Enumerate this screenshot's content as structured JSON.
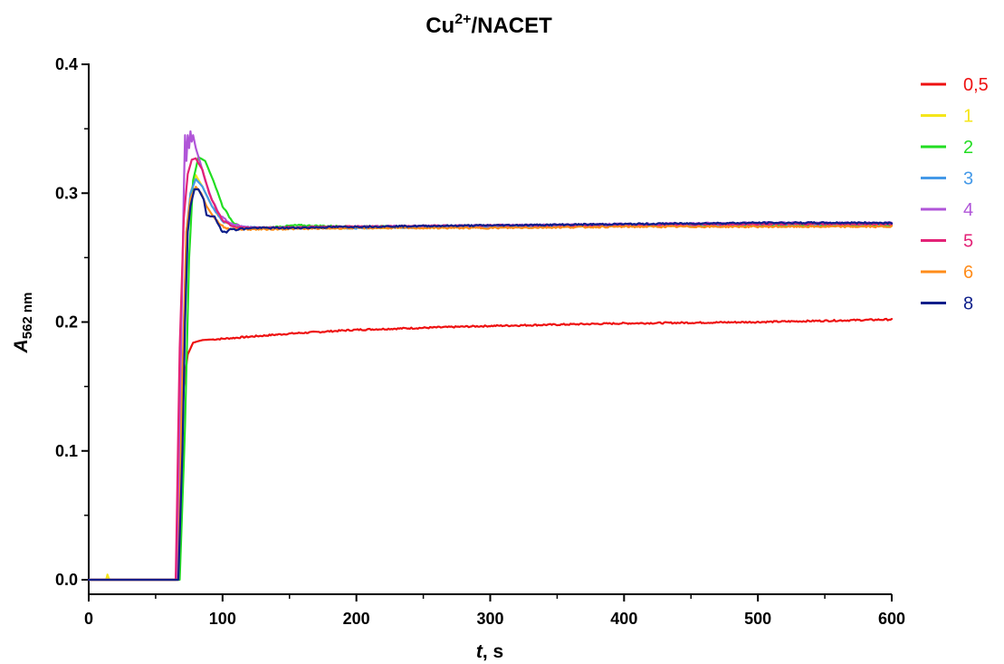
{
  "chart_data": {
    "type": "line",
    "title_main": "Cu",
    "title_sup": "2+",
    "title_rest": "/NACET",
    "xlabel_italic": "t",
    "xlabel_rest": ", s",
    "ylabel_italic": "A",
    "ylabel_sub": "562 nm",
    "xlim": [
      0,
      600
    ],
    "ylim": [
      0,
      0.4
    ],
    "xticks": [
      "0",
      "100",
      "200",
      "300",
      "400",
      "500",
      "600"
    ],
    "yticks": [
      "0.0",
      "0.1",
      "0.2",
      "0.3",
      "0.4"
    ],
    "grid": false,
    "legend_position": "right",
    "series": [
      {
        "name": "0,5",
        "color": "#ee1111",
        "onset": 66,
        "x": [
          0,
          65,
          68,
          71,
          74,
          78,
          85,
          100,
          150,
          200,
          300,
          400,
          500,
          600
        ],
        "y": [
          0,
          0,
          0.06,
          0.15,
          0.175,
          0.184,
          0.186,
          0.187,
          0.191,
          0.194,
          0.197,
          0.199,
          0.2,
          0.202
        ]
      },
      {
        "name": "1",
        "color": "#f5e61a",
        "onset": 68,
        "x": [
          0,
          13,
          14,
          15,
          16,
          66,
          70,
          73,
          76,
          80,
          85,
          92,
          100,
          110,
          130,
          200,
          300,
          400,
          500,
          600
        ],
        "y": [
          0,
          0,
          0.004,
          0.001,
          0,
          0,
          0.12,
          0.26,
          0.3,
          0.314,
          0.305,
          0.29,
          0.278,
          0.274,
          0.273,
          0.273,
          0.274,
          0.275,
          0.275,
          0.275
        ]
      },
      {
        "name": "2",
        "color": "#22dd22",
        "onset": 70,
        "x": [
          0,
          68,
          72,
          75,
          78,
          82,
          87,
          93,
          100,
          108,
          115,
          130,
          155,
          200,
          300,
          400,
          500,
          600
        ],
        "y": [
          0,
          0,
          0.12,
          0.25,
          0.31,
          0.328,
          0.325,
          0.31,
          0.29,
          0.277,
          0.273,
          0.273,
          0.275,
          0.274,
          0.274,
          0.275,
          0.275,
          0.275
        ]
      },
      {
        "name": "3",
        "color": "#4499e8",
        "onset": 68,
        "x": [
          0,
          67,
          70,
          73,
          76,
          80,
          85,
          92,
          100,
          110,
          130,
          200,
          300,
          400,
          500,
          600
        ],
        "y": [
          0,
          0,
          0.15,
          0.27,
          0.3,
          0.311,
          0.305,
          0.29,
          0.278,
          0.274,
          0.273,
          0.273,
          0.274,
          0.275,
          0.276,
          0.276
        ]
      },
      {
        "name": "4",
        "color": "#b055d8",
        "onset": 67,
        "x": [
          0,
          66,
          69,
          71,
          72,
          73,
          74,
          75,
          76,
          77,
          78,
          80,
          83,
          87,
          92,
          98,
          105,
          115,
          130,
          200,
          300,
          400,
          500,
          600
        ],
        "y": [
          0,
          0,
          0.18,
          0.3,
          0.345,
          0.325,
          0.345,
          0.335,
          0.348,
          0.34,
          0.345,
          0.335,
          0.325,
          0.31,
          0.295,
          0.283,
          0.277,
          0.274,
          0.273,
          0.274,
          0.275,
          0.276,
          0.277,
          0.277
        ]
      },
      {
        "name": "5",
        "color": "#e32277",
        "onset": 66,
        "x": [
          0,
          65,
          68,
          71,
          74,
          77,
          80,
          85,
          90,
          95,
          100,
          108,
          120,
          200,
          300,
          400,
          500,
          600
        ],
        "y": [
          0,
          0,
          0.18,
          0.28,
          0.315,
          0.326,
          0.327,
          0.318,
          0.3,
          0.288,
          0.279,
          0.274,
          0.273,
          0.274,
          0.275,
          0.275,
          0.276,
          0.276
        ]
      },
      {
        "name": "6",
        "color": "#ff8c1a",
        "onset": 68,
        "x": [
          0,
          67,
          70,
          73,
          76,
          80,
          84,
          88,
          93,
          98,
          102,
          110,
          130,
          200,
          300,
          400,
          500,
          600
        ],
        "y": [
          0,
          0,
          0.16,
          0.27,
          0.296,
          0.305,
          0.3,
          0.29,
          0.282,
          0.276,
          0.273,
          0.272,
          0.272,
          0.273,
          0.273,
          0.274,
          0.274,
          0.274
        ]
      },
      {
        "name": "8",
        "color": "#0d1e8a",
        "onset": 69,
        "x": [
          0,
          67,
          70,
          72,
          74,
          76,
          79,
          82,
          86,
          88,
          91,
          94,
          97,
          100,
          103,
          106,
          110,
          113,
          116,
          120,
          130,
          150,
          200,
          300,
          400,
          500,
          600
        ],
        "y": [
          0,
          0,
          0.1,
          0.2,
          0.27,
          0.29,
          0.303,
          0.303,
          0.295,
          0.283,
          0.282,
          0.282,
          0.275,
          0.27,
          0.27,
          0.273,
          0.271,
          0.273,
          0.272,
          0.273,
          0.273,
          0.273,
          0.274,
          0.275,
          0.276,
          0.277,
          0.277
        ]
      }
    ]
  }
}
